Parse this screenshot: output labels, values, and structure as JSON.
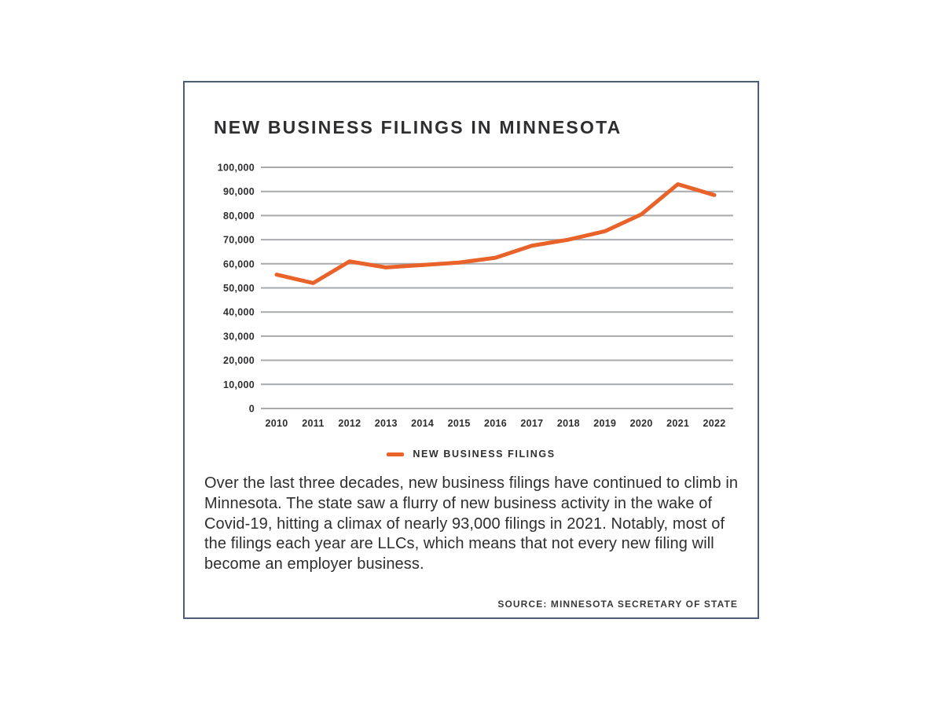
{
  "chart_data": {
    "type": "line",
    "title": "NEW BUSINESS FILINGS IN MINNESOTA",
    "x_labels": [
      "2010",
      "2011",
      "2012",
      "2013",
      "2014",
      "2015",
      "2016",
      "2017",
      "2018",
      "2019",
      "2020",
      "2021",
      "2022"
    ],
    "series": [
      {
        "name": "NEW BUSINESS FILINGS",
        "color": "#E8622A",
        "values": [
          55500,
          52000,
          61000,
          58500,
          59500,
          60500,
          62500,
          67500,
          70000,
          73500,
          80500,
          93000,
          88500
        ]
      }
    ],
    "ylim": [
      0,
      100000
    ],
    "ytick_step": 10000,
    "ytick_labels": [
      "0",
      "10,000",
      "20,000",
      "30,000",
      "40,000",
      "50,000",
      "60,000",
      "70,000",
      "80,000",
      "90,000",
      "100,000"
    ],
    "grid": true,
    "legend_position": "bottom"
  },
  "caption": "Over the last three decades, new business filings have continued to climb in Minnesota. The state saw a flurry of new business activity in the wake of Covid-19, hitting a climax of nearly 93,000 filings in 2021. Notably, most of the filings each year are LLCs, which means that not every new filing will become an employer business.",
  "source": "SOURCE: MINNESOTA SECRETARY OF STATE",
  "colors": {
    "accent": "#E8622A",
    "border": "#4D5C78",
    "grid": "#A7A9AC",
    "text": "#2E2E30"
  }
}
